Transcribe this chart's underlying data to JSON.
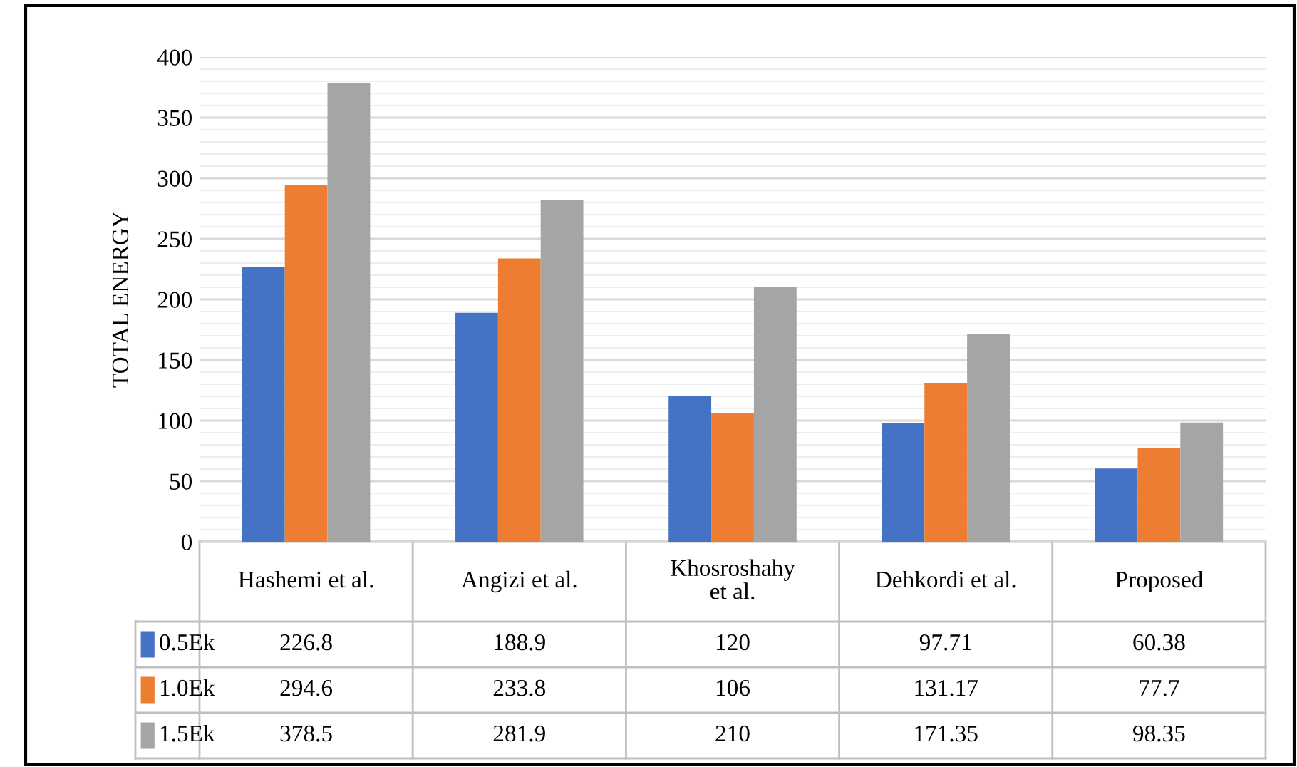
{
  "chart_data": {
    "type": "bar",
    "ylabel": "TOTAL ENERGY",
    "categories": [
      "Hashemi et al.",
      "Angizi et al.",
      "Khosroshahy et al.",
      "Dehkordi et al.",
      "Proposed"
    ],
    "series": [
      {
        "name": "0.5Ek",
        "color": "#4472c4",
        "values": [
          226.8,
          188.9,
          120,
          97.71,
          60.38
        ]
      },
      {
        "name": "1.0Ek",
        "color": "#ed7d31",
        "values": [
          294.6,
          233.8,
          106,
          131.17,
          77.7
        ]
      },
      {
        "name": "1.5Ek",
        "color": "#a5a5a5",
        "values": [
          378.5,
          281.9,
          210,
          171.35,
          98.35
        ]
      }
    ],
    "ylim": [
      0,
      400
    ],
    "yticks": [
      0,
      50,
      100,
      150,
      200,
      250,
      300,
      350,
      400
    ],
    "grid": "y",
    "legend": "bottom",
    "data_labels": true
  }
}
